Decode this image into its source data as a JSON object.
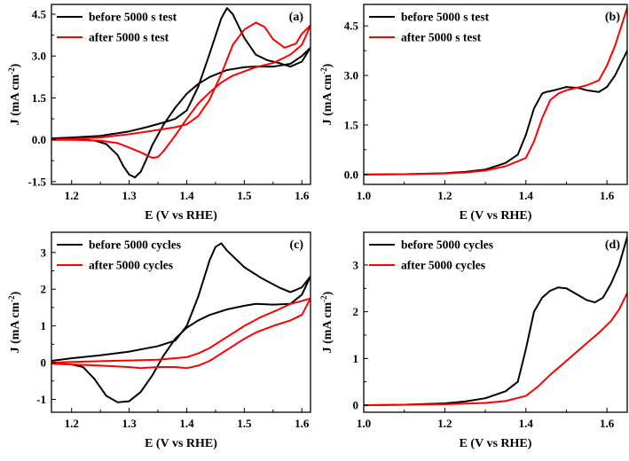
{
  "colors": {
    "before": "#000000",
    "after": "#ff0000"
  },
  "chart_data": [
    {
      "id": "a",
      "type": "line",
      "panel_label": "(a)",
      "title": "",
      "xlabel": "E (V vs RHE)",
      "ylabel": "J (mA cm",
      "ylabel_sup": "-2",
      "ylabel_close": ")",
      "xlim": [
        1.165,
        1.615
      ],
      "ylim": [
        -1.6,
        4.85
      ],
      "xticks": [
        1.2,
        1.3,
        1.4,
        1.5,
        1.6
      ],
      "xtick_labels": [
        "1.2",
        "1.3",
        "1.4",
        "1.5",
        "1.6"
      ],
      "yticks": [
        -1.5,
        0.0,
        1.5,
        3.0,
        4.5
      ],
      "ytick_labels": [
        "-1.5",
        "0.0",
        "1.5",
        "3.0",
        "4.5"
      ],
      "legend": "top-left",
      "series": [
        {
          "name": "before 5000 s test",
          "color": "#000000",
          "x": [
            1.165,
            1.2,
            1.25,
            1.3,
            1.33,
            1.36,
            1.38,
            1.4,
            1.42,
            1.44,
            1.46,
            1.47,
            1.48,
            1.5,
            1.52,
            1.54,
            1.56,
            1.58,
            1.6,
            1.615,
            1.6,
            1.58,
            1.55,
            1.52,
            1.5,
            1.47,
            1.44,
            1.42,
            1.4,
            1.38,
            1.36,
            1.34,
            1.33,
            1.32,
            1.31,
            1.3,
            1.29,
            1.28,
            1.26,
            1.24,
            1.22,
            1.2,
            1.165
          ],
          "y": [
            0.05,
            0.08,
            0.14,
            0.3,
            0.45,
            0.62,
            0.75,
            1.05,
            1.9,
            3.1,
            4.35,
            4.72,
            4.5,
            3.65,
            3.05,
            2.85,
            2.75,
            2.62,
            2.8,
            3.3,
            3.0,
            2.72,
            2.62,
            2.62,
            2.6,
            2.5,
            2.25,
            2.0,
            1.65,
            1.15,
            0.55,
            -0.2,
            -0.7,
            -1.15,
            -1.35,
            -1.25,
            -0.95,
            -0.55,
            -0.15,
            -0.03,
            0.0,
            0.0,
            0.0
          ]
        },
        {
          "name": "after 5000 s test",
          "color": "#ff0000",
          "x": [
            1.165,
            1.2,
            1.25,
            1.3,
            1.35,
            1.38,
            1.4,
            1.42,
            1.44,
            1.46,
            1.48,
            1.5,
            1.52,
            1.535,
            1.55,
            1.57,
            1.59,
            1.6,
            1.615,
            1.6,
            1.58,
            1.55,
            1.52,
            1.5,
            1.48,
            1.46,
            1.44,
            1.42,
            1.4,
            1.38,
            1.36,
            1.35,
            1.34,
            1.33,
            1.32,
            1.3,
            1.28,
            1.25,
            1.2,
            1.165
          ],
          "y": [
            0.0,
            0.03,
            0.08,
            0.2,
            0.35,
            0.45,
            0.55,
            0.85,
            1.45,
            2.35,
            3.4,
            3.95,
            4.2,
            4.05,
            3.6,
            3.3,
            3.45,
            3.8,
            4.1,
            3.4,
            3.05,
            2.75,
            2.6,
            2.45,
            2.3,
            2.05,
            1.7,
            1.3,
            0.75,
            0.15,
            -0.4,
            -0.62,
            -0.65,
            -0.55,
            -0.45,
            -0.28,
            -0.12,
            -0.03,
            0.0,
            0.0
          ]
        }
      ]
    },
    {
      "id": "b",
      "type": "line",
      "panel_label": "(b)",
      "title": "",
      "xlabel": "E (V vs RHE)",
      "ylabel": "J (mA cm",
      "ylabel_sup": "-2",
      "ylabel_close": ")",
      "xlim": [
        1.0,
        1.65
      ],
      "ylim": [
        -0.3,
        5.15
      ],
      "xticks": [
        1.0,
        1.2,
        1.4,
        1.6
      ],
      "xtick_labels": [
        "1.0",
        "1.2",
        "1.4",
        "1.6"
      ],
      "yticks": [
        0.0,
        1.5,
        3.0,
        4.5
      ],
      "ytick_labels": [
        "0.0",
        "1.5",
        "3.0",
        "4.5"
      ],
      "legend": "top-left",
      "series": [
        {
          "name": "before 5000 s test",
          "color": "#000000",
          "x": [
            1.0,
            1.1,
            1.2,
            1.25,
            1.3,
            1.35,
            1.38,
            1.4,
            1.42,
            1.44,
            1.45,
            1.47,
            1.5,
            1.53,
            1.55,
            1.58,
            1.6,
            1.62,
            1.65
          ],
          "y": [
            0.0,
            0.01,
            0.04,
            0.08,
            0.15,
            0.35,
            0.6,
            1.2,
            2.0,
            2.45,
            2.5,
            2.55,
            2.65,
            2.62,
            2.55,
            2.5,
            2.65,
            3.0,
            3.75
          ]
        },
        {
          "name": "after 5000 s test",
          "color": "#ff0000",
          "x": [
            1.0,
            1.1,
            1.2,
            1.25,
            1.3,
            1.35,
            1.4,
            1.42,
            1.44,
            1.46,
            1.48,
            1.5,
            1.55,
            1.58,
            1.6,
            1.62,
            1.65
          ],
          "y": [
            0.0,
            0.01,
            0.03,
            0.06,
            0.12,
            0.25,
            0.5,
            1.0,
            1.7,
            2.25,
            2.45,
            2.55,
            2.7,
            2.85,
            3.3,
            3.9,
            5.05
          ]
        }
      ]
    },
    {
      "id": "c",
      "type": "line",
      "panel_label": "(c)",
      "title": "",
      "xlabel": "E (V vs RHE)",
      "ylabel": "J (mA cm",
      "ylabel_sup": "-2",
      "ylabel_close": ")",
      "xlim": [
        1.165,
        1.615
      ],
      "ylim": [
        -1.35,
        3.55
      ],
      "xticks": [
        1.2,
        1.3,
        1.4,
        1.5,
        1.6
      ],
      "xtick_labels": [
        "1.2",
        "1.3",
        "1.4",
        "1.5",
        "1.6"
      ],
      "yticks": [
        -1,
        0,
        1,
        2,
        3
      ],
      "ytick_labels": [
        "-1",
        "0",
        "1",
        "2",
        "3"
      ],
      "legend": "top-left",
      "series": [
        {
          "name": "before 5000 cycles",
          "color": "#000000",
          "x": [
            1.165,
            1.2,
            1.25,
            1.3,
            1.35,
            1.38,
            1.4,
            1.42,
            1.44,
            1.45,
            1.46,
            1.47,
            1.5,
            1.53,
            1.56,
            1.58,
            1.6,
            1.615,
            1.6,
            1.58,
            1.55,
            1.52,
            1.5,
            1.47,
            1.44,
            1.42,
            1.4,
            1.38,
            1.36,
            1.34,
            1.32,
            1.3,
            1.28,
            1.26,
            1.24,
            1.22,
            1.2,
            1.165
          ],
          "y": [
            0.05,
            0.12,
            0.2,
            0.3,
            0.45,
            0.6,
            1.0,
            1.8,
            2.8,
            3.15,
            3.25,
            3.05,
            2.6,
            2.3,
            2.05,
            1.92,
            2.05,
            2.35,
            1.85,
            1.6,
            1.58,
            1.6,
            1.55,
            1.45,
            1.3,
            1.15,
            0.95,
            0.65,
            0.2,
            -0.35,
            -0.8,
            -1.05,
            -1.08,
            -0.9,
            -0.45,
            -0.12,
            -0.05,
            -0.02
          ]
        },
        {
          "name": "after 5000 cycles",
          "color": "#ff0000",
          "x": [
            1.165,
            1.2,
            1.25,
            1.3,
            1.35,
            1.4,
            1.42,
            1.44,
            1.46,
            1.48,
            1.5,
            1.53,
            1.56,
            1.58,
            1.6,
            1.615,
            1.6,
            1.58,
            1.55,
            1.52,
            1.5,
            1.48,
            1.46,
            1.44,
            1.42,
            1.4,
            1.38,
            1.35,
            1.32,
            1.3,
            1.25,
            1.2,
            1.165
          ],
          "y": [
            0.0,
            0.02,
            0.04,
            0.06,
            0.08,
            0.15,
            0.25,
            0.4,
            0.6,
            0.8,
            1.0,
            1.25,
            1.45,
            1.6,
            1.68,
            1.75,
            1.3,
            1.15,
            1.0,
            0.82,
            0.65,
            0.45,
            0.25,
            0.05,
            -0.08,
            -0.15,
            -0.12,
            -0.12,
            -0.15,
            -0.12,
            -0.08,
            -0.05,
            -0.03
          ]
        }
      ]
    },
    {
      "id": "d",
      "type": "line",
      "panel_label": "(d)",
      "title": "",
      "xlabel": "E (V vs RHE)",
      "ylabel": "J (mA cm",
      "ylabel_sup": "-2",
      "ylabel_close": ")",
      "xlim": [
        1.0,
        1.65
      ],
      "ylim": [
        -0.15,
        3.7
      ],
      "xticks": [
        1.0,
        1.2,
        1.4,
        1.6
      ],
      "xtick_labels": [
        "1.0",
        "1.2",
        "1.4",
        "1.6"
      ],
      "yticks": [
        0,
        1,
        2,
        3
      ],
      "ytick_labels": [
        "0",
        "1",
        "2",
        "3"
      ],
      "legend": "top-left",
      "series": [
        {
          "name": "before 5000 cycles",
          "color": "#000000",
          "x": [
            1.0,
            1.1,
            1.2,
            1.25,
            1.3,
            1.35,
            1.38,
            1.4,
            1.42,
            1.44,
            1.46,
            1.48,
            1.5,
            1.52,
            1.55,
            1.57,
            1.59,
            1.61,
            1.63,
            1.65
          ],
          "y": [
            0.0,
            0.01,
            0.04,
            0.08,
            0.15,
            0.3,
            0.5,
            1.2,
            2.0,
            2.3,
            2.45,
            2.52,
            2.5,
            2.4,
            2.25,
            2.2,
            2.3,
            2.6,
            3.0,
            3.6
          ]
        },
        {
          "name": "after 5000 cycles",
          "color": "#ff0000",
          "x": [
            1.0,
            1.1,
            1.2,
            1.3,
            1.35,
            1.4,
            1.43,
            1.46,
            1.5,
            1.54,
            1.58,
            1.61,
            1.63,
            1.65
          ],
          "y": [
            0.0,
            0.01,
            0.02,
            0.05,
            0.09,
            0.2,
            0.4,
            0.65,
            0.95,
            1.25,
            1.55,
            1.8,
            2.05,
            2.4
          ]
        }
      ]
    }
  ]
}
